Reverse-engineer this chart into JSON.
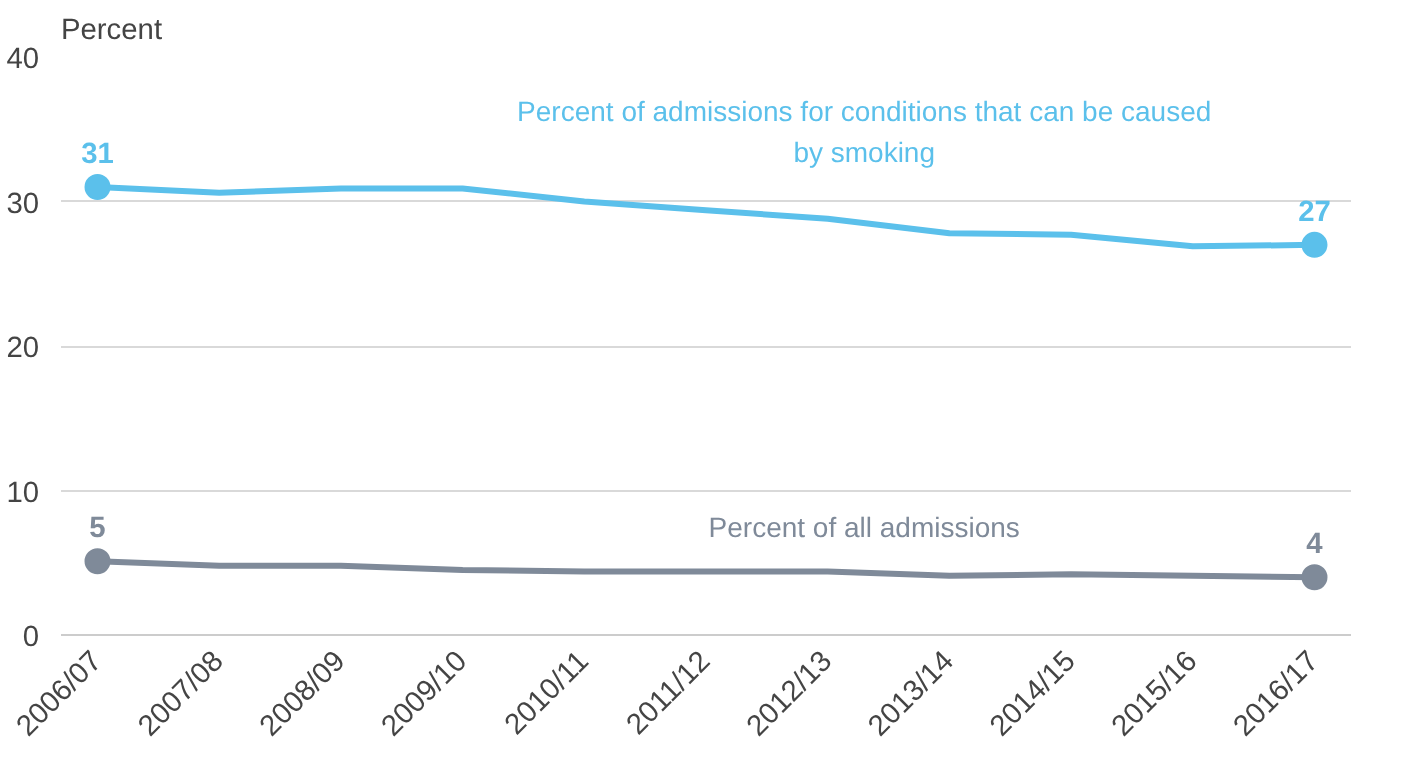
{
  "chart_data": {
    "type": "line",
    "ylabel": "Percent",
    "categories": [
      "2006/07",
      "2007/08",
      "2008/09",
      "2009/10",
      "2010/11",
      "2011/12",
      "2012/13",
      "2013/14",
      "2014/15",
      "2015/16",
      "2016/17"
    ],
    "series": [
      {
        "name": "Percent of admissions for conditions that can be caused by smoking",
        "color": "#5bc0eb",
        "values": [
          31,
          30.6,
          30.9,
          30.9,
          30.0,
          29.4,
          28.8,
          27.8,
          27.7,
          26.9,
          27
        ],
        "value_labels": [
          "31",
          null,
          null,
          null,
          null,
          null,
          null,
          null,
          null,
          null,
          "27"
        ]
      },
      {
        "name": "Percent of all admissions",
        "color": "#7f8a99",
        "values": [
          5.1,
          4.8,
          4.8,
          4.5,
          4.4,
          4.4,
          4.4,
          4.1,
          4.2,
          4.1,
          4
        ],
        "value_labels": [
          "5",
          null,
          null,
          null,
          null,
          null,
          null,
          null,
          null,
          null,
          "4"
        ]
      }
    ],
    "ylim": [
      0,
      40
    ],
    "yticks": [
      0,
      10,
      20,
      30,
      40
    ],
    "grid": "y",
    "line_style": "solid"
  }
}
